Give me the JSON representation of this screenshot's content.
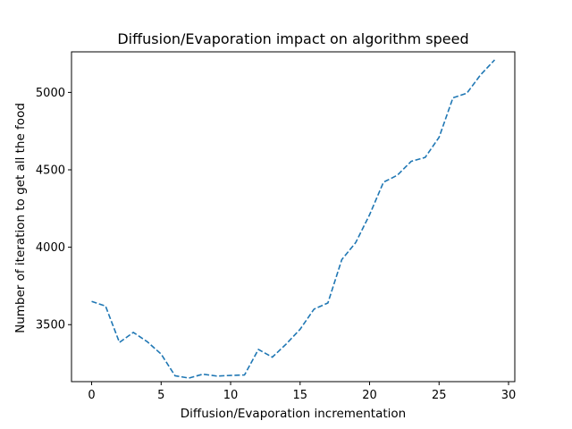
{
  "chart_data": {
    "type": "line",
    "title": "Diffusion/Evaporation impact on algorithm speed",
    "xlabel": "Diffusion/Evaporation incrementation",
    "ylabel": "Number of iteration to get all the food",
    "xlim": [
      -1.45,
      30.45
    ],
    "ylim": [
      3132,
      5262
    ],
    "x_ticks": [
      0,
      5,
      10,
      15,
      20,
      25,
      30
    ],
    "y_ticks": [
      3500,
      4000,
      4500,
      5000
    ],
    "grid": false,
    "legend": "none",
    "line_style": "dashed",
    "color": "#1f77b4",
    "series": [
      {
        "x": [
          0,
          1,
          2,
          3,
          4,
          5,
          6,
          7,
          8,
          9,
          10,
          11,
          12,
          13,
          14,
          15,
          16,
          17,
          18,
          19,
          20,
          21,
          22,
          23,
          24,
          25,
          26,
          27,
          28,
          29
        ],
        "values": [
          3650,
          3620,
          3385,
          3450,
          3390,
          3310,
          3170,
          3155,
          3180,
          3168,
          3172,
          3175,
          3340,
          3290,
          3375,
          3470,
          3600,
          3640,
          3920,
          4030,
          4210,
          4420,
          4465,
          4555,
          4580,
          4710,
          4965,
          4995,
          5115,
          5210
        ]
      }
    ]
  }
}
